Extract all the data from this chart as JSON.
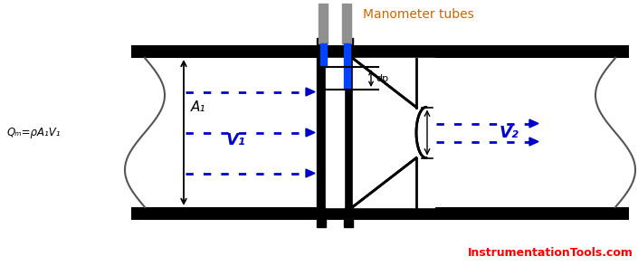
{
  "bg_color": "#ffffff",
  "pipe_color": "#000000",
  "arrow_color": "#0000cc",
  "manometer_color": "#cc6600",
  "red_color": "#ff0000",
  "source_text": "InstrumentationTools.com",
  "manometer_label": "Manometer tubes",
  "dp_label": "dp",
  "A1_label": "A₁",
  "V1_label": "V₁",
  "V2_label": "V₂",
  "Qm_label": "Qₘ=ρA₁V₁"
}
